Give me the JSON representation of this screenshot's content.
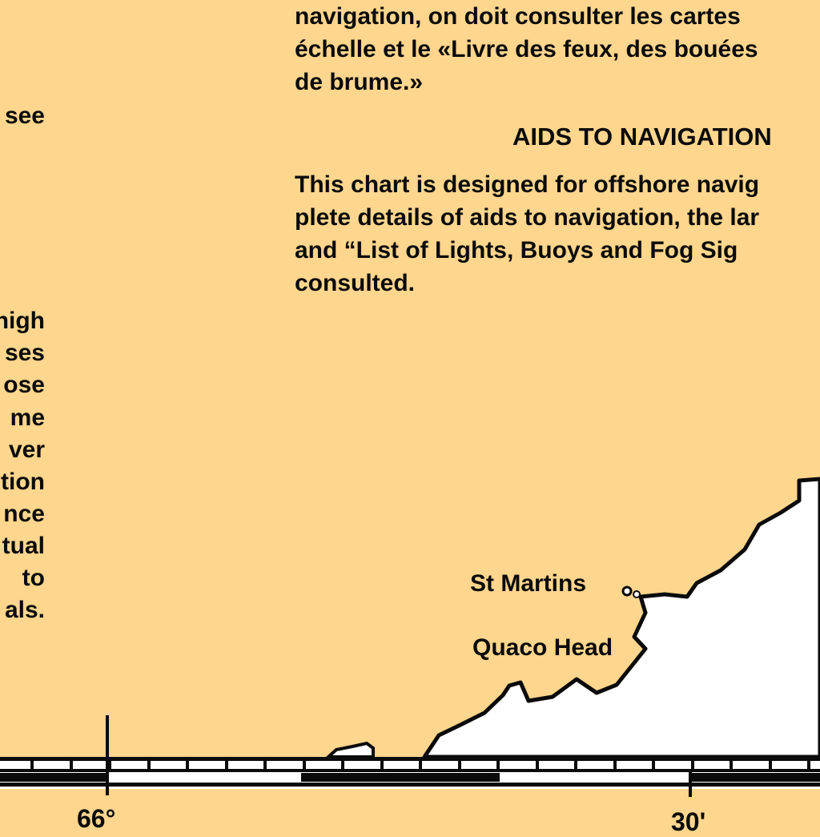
{
  "colors": {
    "land": "#ffd68d",
    "water": "#ffffff",
    "ink": "#0b0b0b"
  },
  "french_note": {
    "lines": [
      "navigation, on doit consulter les cartes",
      "échelle et le «Livre des feux, des bouées",
      "de brume.»"
    ]
  },
  "aids_to_navigation": {
    "heading": "AIDS TO NAVIGATION",
    "lines": [
      "This chart is designed for offshore navig",
      "plete details of aids to navigation, the lar",
      "and “List of Lights, Buoys and Fog Sig",
      "consulted."
    ]
  },
  "left_column_fragments": [
    "see",
    "high",
    "ses",
    "ose",
    "me",
    "ver",
    "tion",
    "nce",
    "tual",
    "to",
    "als."
  ],
  "places": {
    "st_martins": "St Martins",
    "quaco_head": "Quaco Head"
  },
  "longitude_labels": {
    "west": "66°",
    "east": "30'"
  }
}
